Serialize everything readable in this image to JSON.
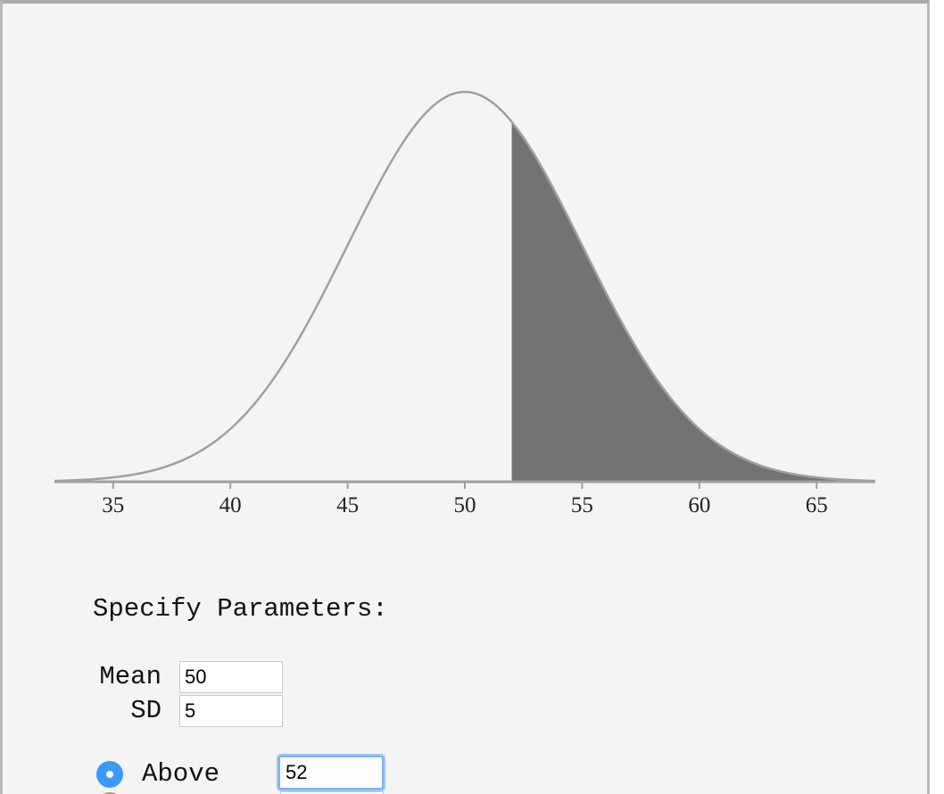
{
  "chart_data": {
    "type": "area",
    "title": "",
    "xlabel": "",
    "ylabel": "",
    "distribution": "normal",
    "mean": 50,
    "sd": 5,
    "xlim": [
      32.5,
      67.5
    ],
    "ticks": [
      35,
      40,
      45,
      50,
      55,
      60,
      65
    ],
    "tick_labels": [
      "35",
      "40",
      "45",
      "50",
      "55",
      "60",
      "65"
    ],
    "shaded_region": {
      "direction": "above",
      "from": 52,
      "to": 67.5
    },
    "colors": {
      "curve": "#a0a0a0",
      "shade": "#737373",
      "axis": "#a0a0a0"
    }
  },
  "params": {
    "title": "Specify Parameters:",
    "mean_label": "Mean",
    "mean_value": "50",
    "sd_label": "SD",
    "sd_value": "5"
  },
  "region": {
    "option_label": "Above",
    "selected": true,
    "cutoff_value": "52"
  }
}
